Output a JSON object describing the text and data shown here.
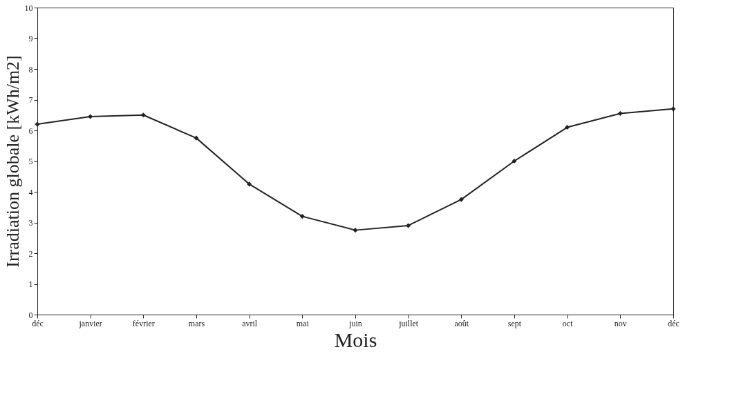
{
  "chart_data": {
    "type": "line",
    "xlabel": "Mois",
    "ylabel": "Irradiation globale [kWh/m2]",
    "categories": [
      "déc",
      "janvier",
      "février",
      "mars",
      "avril",
      "mai",
      "juin",
      "juillet",
      "août",
      "sept",
      "oct",
      "nov",
      "déc"
    ],
    "series": [
      {
        "color": "#222222",
        "values": [
          6.2,
          6.45,
          6.5,
          5.75,
          4.25,
          3.2,
          2.75,
          2.9,
          3.75,
          5.0,
          6.1,
          6.55,
          6.7
        ]
      }
    ],
    "ylim": [
      0,
      10
    ],
    "yticks": [
      0,
      1,
      2,
      3,
      4,
      5,
      6,
      7,
      8,
      9,
      10
    ],
    "grid": false,
    "marker": "diamond",
    "line_style": "solid"
  }
}
